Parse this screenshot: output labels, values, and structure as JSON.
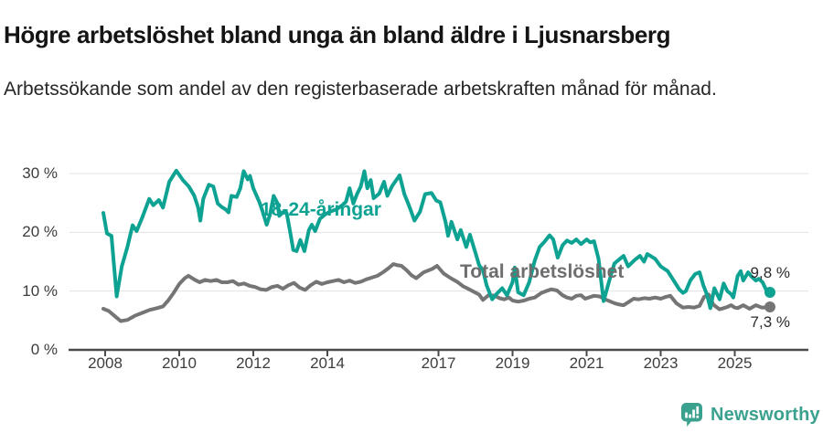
{
  "page": {
    "title": "Högre arbetslöshet bland unga än bland äldre i Ljusnarsberg",
    "subtitle": "Arbetssökande som andel av den registerbaserade arbetskraften månad för månad."
  },
  "footer": {
    "brand": "Newsworthy",
    "logo_icon": "newsworthy-speech-bubble-barchart-icon"
  },
  "colors": {
    "accent_teal": "#0EA293",
    "series_gray": "#757575",
    "label_gray": "#6E6E6E",
    "grid": "#E3E3E3",
    "axis": "#4B4B4B",
    "tick_text": "#3D3D3D",
    "end_label_text": "#2B2B2B",
    "logo_teal": "#3BA18F"
  },
  "chart_data": {
    "type": "line",
    "title": "Högre arbetslöshet bland unga än bland äldre i Ljusnarsberg",
    "subtitle": "Arbetssökande som andel av den registerbaserade arbetskraften månad för månad.",
    "unit": "%",
    "grid": true,
    "legend_position": "inline-labels",
    "x_axis": {
      "label": "",
      "ticks": [
        2008,
        2010,
        2012,
        2014,
        2017,
        2019,
        2021,
        2023,
        2025
      ],
      "tick_labels": [
        "2008",
        "2010",
        "2012",
        "2014",
        "2017",
        "2019",
        "2021",
        "2023",
        "2025"
      ],
      "range": [
        2007.9,
        2026.2
      ]
    },
    "y_axis": {
      "label": "",
      "ticks": [
        0,
        10,
        20,
        30
      ],
      "tick_labels": [
        "0 %",
        "10 %",
        "20 %",
        "30 %"
      ],
      "range": [
        0,
        31.5
      ]
    },
    "series": [
      {
        "name": "18-24-åringar",
        "color": "#0EA293",
        "end_value": 9.8,
        "end_label": "9,8 %",
        "points": [
          [
            2007.95,
            23.3
          ],
          [
            2008.05,
            19.8
          ],
          [
            2008.17,
            19.4
          ],
          [
            2008.31,
            9.1
          ],
          [
            2008.45,
            14.2
          ],
          [
            2008.6,
            17.5
          ],
          [
            2008.74,
            21.2
          ],
          [
            2008.85,
            20.2
          ],
          [
            2009.0,
            22.5
          ],
          [
            2009.19,
            25.7
          ],
          [
            2009.3,
            24.6
          ],
          [
            2009.45,
            25.5
          ],
          [
            2009.56,
            24.2
          ],
          [
            2009.73,
            28.6
          ],
          [
            2009.92,
            30.5
          ],
          [
            2010.1,
            28.9
          ],
          [
            2010.26,
            27.8
          ],
          [
            2010.4,
            26.3
          ],
          [
            2010.51,
            24.2
          ],
          [
            2010.57,
            22.0
          ],
          [
            2010.65,
            25.7
          ],
          [
            2010.8,
            28.1
          ],
          [
            2010.92,
            27.8
          ],
          [
            2011.04,
            24.9
          ],
          [
            2011.15,
            24.3
          ],
          [
            2011.25,
            23.9
          ],
          [
            2011.33,
            23.4
          ],
          [
            2011.41,
            26.2
          ],
          [
            2011.55,
            26.0
          ],
          [
            2011.65,
            27.5
          ],
          [
            2011.74,
            30.4
          ],
          [
            2011.85,
            29.0
          ],
          [
            2011.91,
            29.6
          ],
          [
            2012.0,
            27.5
          ],
          [
            2012.16,
            25.2
          ],
          [
            2012.25,
            23.6
          ],
          [
            2012.36,
            21.3
          ],
          [
            2012.45,
            23.0
          ],
          [
            2012.55,
            26.2
          ],
          [
            2012.65,
            25.0
          ],
          [
            2012.7,
            22.8
          ],
          [
            2012.8,
            23.4
          ],
          [
            2012.9,
            23.3
          ],
          [
            2013.0,
            19.9
          ],
          [
            2013.08,
            17.0
          ],
          [
            2013.17,
            16.8
          ],
          [
            2013.27,
            18.7
          ],
          [
            2013.38,
            16.8
          ],
          [
            2013.5,
            20.4
          ],
          [
            2013.58,
            21.3
          ],
          [
            2013.67,
            20.2
          ],
          [
            2013.8,
            22.3
          ],
          [
            2013.95,
            23.1
          ],
          [
            2014.1,
            23.6
          ],
          [
            2014.25,
            23.9
          ],
          [
            2014.4,
            24.6
          ],
          [
            2014.5,
            25.2
          ],
          [
            2014.6,
            27.5
          ],
          [
            2014.7,
            24.9
          ],
          [
            2014.8,
            26.5
          ],
          [
            2014.9,
            27.8
          ],
          [
            2015.0,
            30.4
          ],
          [
            2015.08,
            27.5
          ],
          [
            2015.17,
            28.9
          ],
          [
            2015.25,
            25.8
          ],
          [
            2015.4,
            26.6
          ],
          [
            2015.53,
            28.6
          ],
          [
            2015.62,
            26.2
          ],
          [
            2015.75,
            27.9
          ],
          [
            2015.95,
            29.7
          ],
          [
            2016.08,
            26.5
          ],
          [
            2016.15,
            25.4
          ],
          [
            2016.25,
            23.8
          ],
          [
            2016.35,
            22.0
          ],
          [
            2016.5,
            23.5
          ],
          [
            2016.64,
            26.5
          ],
          [
            2016.81,
            26.7
          ],
          [
            2016.94,
            25.4
          ],
          [
            2017.05,
            25.1
          ],
          [
            2017.19,
            21.8
          ],
          [
            2017.26,
            19.4
          ],
          [
            2017.35,
            21.8
          ],
          [
            2017.51,
            18.8
          ],
          [
            2017.6,
            20.4
          ],
          [
            2017.75,
            17.5
          ],
          [
            2017.85,
            19.6
          ],
          [
            2018.0,
            16.5
          ],
          [
            2018.1,
            14.4
          ],
          [
            2018.2,
            13.6
          ],
          [
            2018.3,
            11.0
          ],
          [
            2018.45,
            8.6
          ],
          [
            2018.55,
            9.4
          ],
          [
            2018.72,
            10.5
          ],
          [
            2018.85,
            9.3
          ],
          [
            2019.0,
            11.5
          ],
          [
            2019.06,
            14.0
          ],
          [
            2019.15,
            9.8
          ],
          [
            2019.3,
            9.3
          ],
          [
            2019.45,
            11.5
          ],
          [
            2019.6,
            15.2
          ],
          [
            2019.73,
            17.5
          ],
          [
            2019.85,
            18.3
          ],
          [
            2020.0,
            19.5
          ],
          [
            2020.1,
            18.8
          ],
          [
            2020.22,
            15.7
          ],
          [
            2020.35,
            17.8
          ],
          [
            2020.47,
            18.6
          ],
          [
            2020.6,
            18.2
          ],
          [
            2020.72,
            18.8
          ],
          [
            2020.85,
            18.0
          ],
          [
            2021.0,
            18.8
          ],
          [
            2021.1,
            18.3
          ],
          [
            2021.2,
            18.5
          ],
          [
            2021.32,
            15.5
          ],
          [
            2021.46,
            8.3
          ],
          [
            2021.6,
            11.5
          ],
          [
            2021.75,
            14.7
          ],
          [
            2021.9,
            15.5
          ],
          [
            2022.0,
            16.0
          ],
          [
            2022.12,
            14.2
          ],
          [
            2022.3,
            15.3
          ],
          [
            2022.44,
            16.0
          ],
          [
            2022.55,
            15.0
          ],
          [
            2022.64,
            16.3
          ],
          [
            2022.85,
            15.5
          ],
          [
            2023.0,
            14.2
          ],
          [
            2023.19,
            13.4
          ],
          [
            2023.35,
            11.8
          ],
          [
            2023.5,
            10.3
          ],
          [
            2023.6,
            9.7
          ],
          [
            2023.68,
            10.0
          ],
          [
            2023.8,
            11.8
          ],
          [
            2023.93,
            12.9
          ],
          [
            2024.05,
            13.2
          ],
          [
            2024.15,
            11.0
          ],
          [
            2024.25,
            9.4
          ],
          [
            2024.34,
            7.1
          ],
          [
            2024.45,
            10.5
          ],
          [
            2024.59,
            8.6
          ],
          [
            2024.7,
            11.3
          ],
          [
            2024.8,
            10.0
          ],
          [
            2024.9,
            9.5
          ],
          [
            2024.96,
            8.9
          ],
          [
            2025.08,
            12.6
          ],
          [
            2025.16,
            13.4
          ],
          [
            2025.23,
            11.8
          ],
          [
            2025.36,
            13.2
          ],
          [
            2025.45,
            12.5
          ],
          [
            2025.57,
            11.8
          ],
          [
            2025.65,
            12.1
          ],
          [
            2025.75,
            11.5
          ],
          [
            2025.85,
            10.2
          ],
          [
            2025.95,
            9.8
          ]
        ]
      },
      {
        "name": "Total arbetslöshet",
        "color": "#757575",
        "end_value": 7.3,
        "end_label": "7,3 %",
        "points": [
          [
            2007.95,
            7.0
          ],
          [
            2008.1,
            6.6
          ],
          [
            2008.25,
            5.8
          ],
          [
            2008.42,
            4.9
          ],
          [
            2008.6,
            5.1
          ],
          [
            2008.8,
            5.8
          ],
          [
            2009.0,
            6.3
          ],
          [
            2009.2,
            6.8
          ],
          [
            2009.4,
            7.1
          ],
          [
            2009.56,
            7.4
          ],
          [
            2009.7,
            8.4
          ],
          [
            2009.85,
            9.7
          ],
          [
            2010.0,
            11.2
          ],
          [
            2010.15,
            12.2
          ],
          [
            2010.25,
            12.6
          ],
          [
            2010.4,
            12.0
          ],
          [
            2010.55,
            11.5
          ],
          [
            2010.7,
            11.9
          ],
          [
            2010.85,
            11.7
          ],
          [
            2011.0,
            11.9
          ],
          [
            2011.15,
            11.5
          ],
          [
            2011.3,
            11.5
          ],
          [
            2011.45,
            11.7
          ],
          [
            2011.6,
            11.1
          ],
          [
            2011.75,
            11.3
          ],
          [
            2011.9,
            10.9
          ],
          [
            2012.05,
            10.7
          ],
          [
            2012.2,
            10.3
          ],
          [
            2012.35,
            10.2
          ],
          [
            2012.5,
            10.7
          ],
          [
            2012.65,
            10.9
          ],
          [
            2012.8,
            10.4
          ],
          [
            2012.95,
            11.0
          ],
          [
            2013.1,
            11.4
          ],
          [
            2013.25,
            10.6
          ],
          [
            2013.4,
            10.2
          ],
          [
            2013.55,
            11.0
          ],
          [
            2013.7,
            11.6
          ],
          [
            2013.85,
            11.2
          ],
          [
            2014.0,
            11.5
          ],
          [
            2014.15,
            11.7
          ],
          [
            2014.3,
            11.9
          ],
          [
            2014.45,
            11.5
          ],
          [
            2014.6,
            11.8
          ],
          [
            2014.75,
            11.4
          ],
          [
            2014.9,
            11.6
          ],
          [
            2015.05,
            12.0
          ],
          [
            2015.2,
            12.3
          ],
          [
            2015.35,
            12.6
          ],
          [
            2015.5,
            13.2
          ],
          [
            2015.65,
            13.9
          ],
          [
            2015.78,
            14.6
          ],
          [
            2015.9,
            14.4
          ],
          [
            2016.0,
            14.3
          ],
          [
            2016.15,
            13.5
          ],
          [
            2016.27,
            12.7
          ],
          [
            2016.4,
            12.2
          ],
          [
            2016.6,
            13.2
          ],
          [
            2016.84,
            13.8
          ],
          [
            2016.96,
            14.3
          ],
          [
            2017.14,
            13.0
          ],
          [
            2017.33,
            12.2
          ],
          [
            2017.5,
            11.6
          ],
          [
            2017.67,
            10.8
          ],
          [
            2017.8,
            10.4
          ],
          [
            2017.95,
            9.9
          ],
          [
            2018.1,
            9.4
          ],
          [
            2018.2,
            8.5
          ],
          [
            2018.35,
            9.3
          ],
          [
            2018.52,
            9.2
          ],
          [
            2018.65,
            8.8
          ],
          [
            2018.77,
            8.6
          ],
          [
            2018.9,
            8.9
          ],
          [
            2019.0,
            8.4
          ],
          [
            2019.15,
            8.2
          ],
          [
            2019.31,
            8.4
          ],
          [
            2019.45,
            8.7
          ],
          [
            2019.6,
            8.9
          ],
          [
            2019.78,
            9.7
          ],
          [
            2019.9,
            10.0
          ],
          [
            2020.05,
            10.3
          ],
          [
            2020.2,
            10.1
          ],
          [
            2020.35,
            9.3
          ],
          [
            2020.47,
            8.9
          ],
          [
            2020.6,
            8.7
          ],
          [
            2020.72,
            9.2
          ],
          [
            2020.85,
            9.3
          ],
          [
            2020.96,
            8.7
          ],
          [
            2021.1,
            9.0
          ],
          [
            2021.2,
            9.2
          ],
          [
            2021.35,
            9.1
          ],
          [
            2021.5,
            8.6
          ],
          [
            2021.65,
            8.2
          ],
          [
            2021.77,
            7.9
          ],
          [
            2021.9,
            7.7
          ],
          [
            2022.0,
            7.6
          ],
          [
            2022.15,
            8.2
          ],
          [
            2022.27,
            8.7
          ],
          [
            2022.4,
            8.6
          ],
          [
            2022.55,
            8.8
          ],
          [
            2022.7,
            8.7
          ],
          [
            2022.85,
            8.9
          ],
          [
            2023.0,
            8.7
          ],
          [
            2023.13,
            9.0
          ],
          [
            2023.26,
            9.2
          ],
          [
            2023.43,
            7.9
          ],
          [
            2023.6,
            7.2
          ],
          [
            2023.75,
            7.3
          ],
          [
            2023.9,
            7.2
          ],
          [
            2024.05,
            7.5
          ],
          [
            2024.17,
            9.0
          ],
          [
            2024.3,
            9.4
          ],
          [
            2024.42,
            7.7
          ],
          [
            2024.59,
            6.9
          ],
          [
            2024.7,
            7.1
          ],
          [
            2024.8,
            7.3
          ],
          [
            2024.9,
            7.6
          ],
          [
            2025.0,
            7.2
          ],
          [
            2025.08,
            7.1
          ],
          [
            2025.23,
            7.6
          ],
          [
            2025.4,
            7.0
          ],
          [
            2025.57,
            7.6
          ],
          [
            2025.73,
            7.2
          ],
          [
            2025.95,
            7.3
          ]
        ]
      }
    ]
  }
}
